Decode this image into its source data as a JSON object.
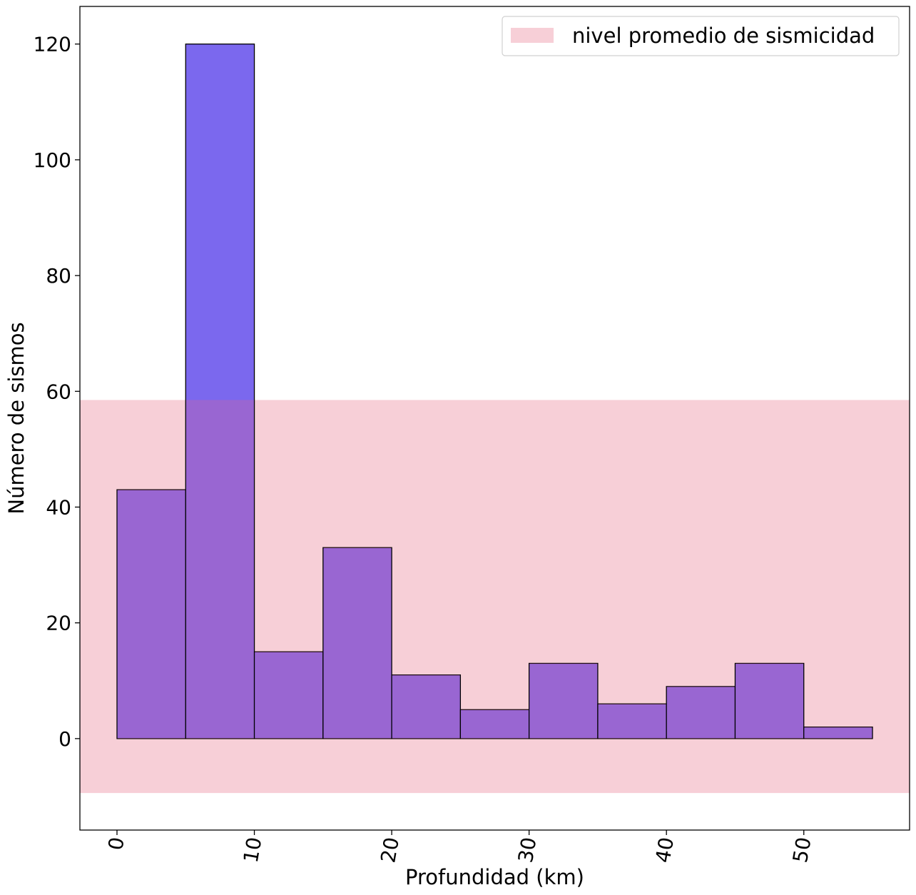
{
  "chart_data": {
    "type": "bar",
    "subtype": "histogram",
    "bin_edges": [
      0,
      5,
      10,
      15,
      20,
      25,
      30,
      35,
      40,
      45,
      50,
      55
    ],
    "values": [
      43,
      120,
      15,
      33,
      11,
      5,
      13,
      6,
      9,
      13,
      2
    ],
    "bar_color": "#7b68ee",
    "bar_edge_color": "#000000",
    "band": {
      "label": "nivel promedio de sismicidad",
      "y_from": -9.4,
      "y_to": 58.5,
      "color": "#f7cfd7"
    },
    "xlabel": "Profundidad (km)",
    "ylabel": "Número de sismos",
    "xlim": [
      -2.7,
      57.7
    ],
    "ylim": [
      -15.8,
      126.5
    ],
    "xticks": [
      0,
      10,
      20,
      30,
      40,
      50
    ],
    "yticks": [
      0,
      20,
      40,
      60,
      80,
      100,
      120
    ],
    "xtick_rotation": -80,
    "grid": false,
    "legend_position": "top-right"
  }
}
